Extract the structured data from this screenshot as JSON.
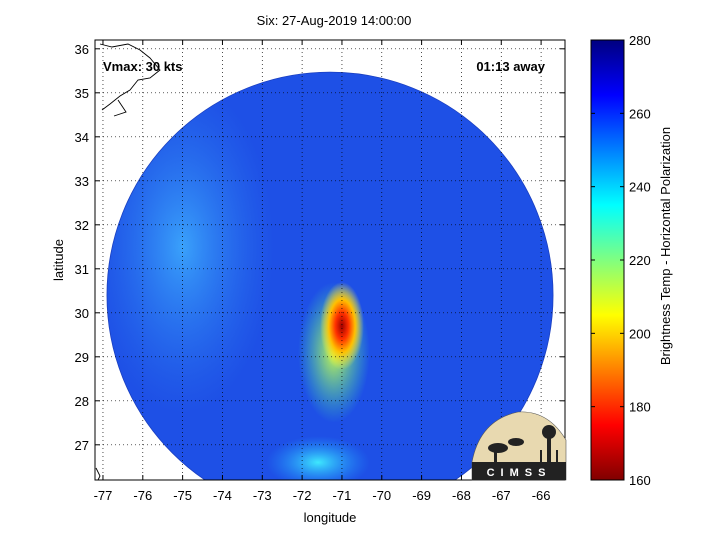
{
  "chart_data": {
    "type": "heatmap",
    "title": "Six: 27-Aug-2019 14:00:00",
    "xlabel": "longitude",
    "ylabel": "latitude",
    "xlim": [
      -77.2,
      -65.4
    ],
    "ylim": [
      26.2,
      36.2
    ],
    "x_ticks": [
      -77,
      -76,
      -75,
      -74,
      -73,
      -72,
      -71,
      -70,
      -69,
      -68,
      -67,
      -66
    ],
    "y_ticks": [
      27,
      28,
      29,
      30,
      31,
      32,
      33,
      34,
      35,
      36
    ],
    "grid": true,
    "annotations": {
      "vmax": "Vmax: 30 kts",
      "time_offset": "01:13 away"
    },
    "swath": {
      "shape": "circle",
      "center_lon": -71.3,
      "center_lat": 30.4,
      "radius_deg": 5.6
    },
    "colorbar": {
      "label": "Brightness Temp - Horizontal Polarization",
      "range": [
        160,
        280
      ],
      "ticks": [
        160,
        180,
        200,
        220,
        240,
        260,
        280
      ],
      "colormap": "jet-reversed"
    },
    "features": [
      {
        "name": "convective core",
        "lon": -71.0,
        "lat": 29.7,
        "min_value": 170
      },
      {
        "name": "rainband",
        "lon": -71.2,
        "lat": 29.1,
        "min_value": 225
      },
      {
        "name": "clear-air region",
        "lon": -75.0,
        "lat": 31.5,
        "min_value": 238
      },
      {
        "name": "southern convection",
        "lon": -71.6,
        "lat": 26.6,
        "min_value": 232
      }
    ],
    "logo": "CIMSS"
  }
}
